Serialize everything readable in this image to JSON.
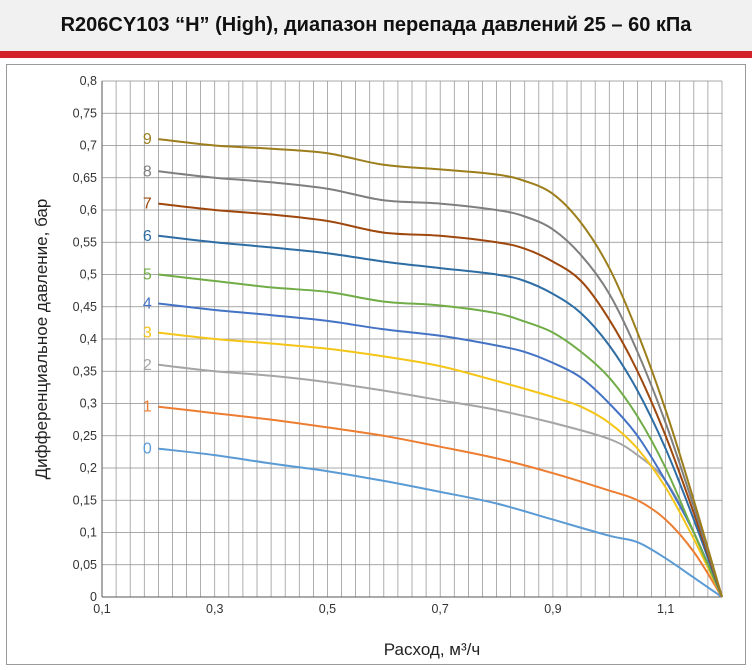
{
  "chart_data": {
    "type": "line",
    "title": "R206CY103 “H” (High), диапазон перепада давлений 25 – 60 кПа",
    "xlabel": "Расход, м³/ч",
    "ylabel": "Дифференциальное давление, бар",
    "xlim": [
      0.1,
      1.2
    ],
    "ylim": [
      0,
      0.8
    ],
    "x_ticks": [
      "0,1",
      "0,3",
      "0,5",
      "0,7",
      "0,9",
      "1,1"
    ],
    "y_ticks": [
      "0",
      "0,05",
      "0,1",
      "0,15",
      "0,2",
      "0,25",
      "0,3",
      "0,35",
      "0,4",
      "0,45",
      "0,5",
      "0,55",
      "0,6",
      "0,65",
      "0,7",
      "0,75",
      "0,8"
    ],
    "grid": true,
    "legend": "curve labels on the left",
    "series": [
      {
        "name": "0",
        "color": "#5b9bd5",
        "x": [
          0.2,
          0.3,
          0.4,
          0.5,
          0.6,
          0.7,
          0.8,
          0.9,
          1.0,
          1.05,
          1.1,
          1.15,
          1.2
        ],
        "y": [
          0.23,
          0.22,
          0.207,
          0.195,
          0.18,
          0.163,
          0.145,
          0.12,
          0.095,
          0.085,
          0.06,
          0.03,
          0.0
        ]
      },
      {
        "name": "1",
        "color": "#ed7d31",
        "x": [
          0.2,
          0.3,
          0.4,
          0.5,
          0.6,
          0.7,
          0.8,
          0.9,
          1.0,
          1.05,
          1.1,
          1.15,
          1.2
        ],
        "y": [
          0.295,
          0.285,
          0.275,
          0.263,
          0.25,
          0.233,
          0.215,
          0.192,
          0.165,
          0.15,
          0.12,
          0.07,
          0.0
        ]
      },
      {
        "name": "2",
        "color": "#a5a5a5",
        "x": [
          0.2,
          0.3,
          0.4,
          0.5,
          0.6,
          0.7,
          0.8,
          0.9,
          1.0,
          1.05,
          1.1,
          1.15,
          1.2
        ],
        "y": [
          0.36,
          0.35,
          0.343,
          0.333,
          0.32,
          0.305,
          0.29,
          0.27,
          0.245,
          0.22,
          0.18,
          0.1,
          0.0
        ]
      },
      {
        "name": "3",
        "color": "#f5c518",
        "x": [
          0.2,
          0.3,
          0.4,
          0.5,
          0.6,
          0.7,
          0.8,
          0.9,
          0.95,
          1.0,
          1.05,
          1.1,
          1.15,
          1.2
        ],
        "y": [
          0.41,
          0.4,
          0.393,
          0.385,
          0.373,
          0.358,
          0.335,
          0.31,
          0.295,
          0.27,
          0.23,
          0.17,
          0.09,
          0.0
        ]
      },
      {
        "name": "4",
        "color": "#4472c4",
        "x": [
          0.2,
          0.3,
          0.4,
          0.5,
          0.6,
          0.7,
          0.8,
          0.85,
          0.9,
          0.95,
          1.0,
          1.05,
          1.1,
          1.15,
          1.2
        ],
        "y": [
          0.455,
          0.445,
          0.437,
          0.428,
          0.415,
          0.405,
          0.39,
          0.38,
          0.363,
          0.34,
          0.3,
          0.25,
          0.18,
          0.1,
          0.0
        ]
      },
      {
        "name": "5",
        "color": "#70ad47",
        "x": [
          0.2,
          0.3,
          0.4,
          0.5,
          0.6,
          0.7,
          0.8,
          0.85,
          0.9,
          0.95,
          1.0,
          1.05,
          1.1,
          1.15,
          1.2
        ],
        "y": [
          0.5,
          0.49,
          0.48,
          0.473,
          0.458,
          0.452,
          0.44,
          0.427,
          0.41,
          0.38,
          0.34,
          0.28,
          0.2,
          0.1,
          0.0
        ]
      },
      {
        "name": "6",
        "color": "#2e6da4",
        "x": [
          0.2,
          0.3,
          0.4,
          0.5,
          0.6,
          0.7,
          0.8,
          0.85,
          0.9,
          0.95,
          1.0,
          1.05,
          1.1,
          1.15,
          1.2
        ],
        "y": [
          0.56,
          0.55,
          0.542,
          0.533,
          0.52,
          0.51,
          0.5,
          0.49,
          0.47,
          0.44,
          0.39,
          0.32,
          0.23,
          0.12,
          0.0
        ]
      },
      {
        "name": "7",
        "color": "#9e480e",
        "x": [
          0.2,
          0.3,
          0.4,
          0.5,
          0.6,
          0.7,
          0.8,
          0.85,
          0.9,
          0.95,
          1.0,
          1.05,
          1.1,
          1.15,
          1.2
        ],
        "y": [
          0.61,
          0.6,
          0.593,
          0.583,
          0.565,
          0.56,
          0.55,
          0.54,
          0.52,
          0.49,
          0.43,
          0.35,
          0.25,
          0.13,
          0.0
        ]
      },
      {
        "name": "8",
        "color": "#7f7f7f",
        "x": [
          0.2,
          0.3,
          0.4,
          0.5,
          0.6,
          0.7,
          0.8,
          0.85,
          0.9,
          0.95,
          1.0,
          1.05,
          1.1,
          1.15,
          1.2
        ],
        "y": [
          0.66,
          0.65,
          0.643,
          0.633,
          0.615,
          0.61,
          0.6,
          0.59,
          0.57,
          0.53,
          0.47,
          0.38,
          0.27,
          0.14,
          0.0
        ]
      },
      {
        "name": "9",
        "color": "#9c7e1c",
        "x": [
          0.2,
          0.3,
          0.4,
          0.5,
          0.6,
          0.7,
          0.8,
          0.85,
          0.9,
          0.95,
          1.0,
          1.05,
          1.1,
          1.15,
          1.2
        ],
        "y": [
          0.71,
          0.7,
          0.695,
          0.688,
          0.67,
          0.663,
          0.655,
          0.645,
          0.625,
          0.58,
          0.51,
          0.41,
          0.29,
          0.15,
          0.0
        ]
      }
    ]
  }
}
